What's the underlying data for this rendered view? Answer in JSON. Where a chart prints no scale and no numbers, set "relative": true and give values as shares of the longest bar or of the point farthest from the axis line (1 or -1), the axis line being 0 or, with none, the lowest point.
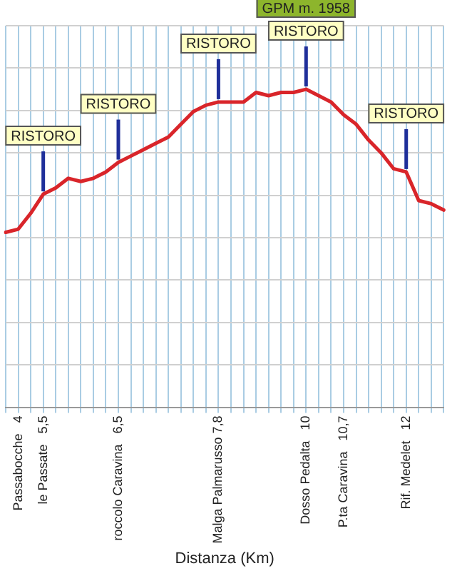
{
  "chart_data": {
    "type": "line",
    "relative": true,
    "xlabel": "Distanza (Km)",
    "categories": [
      null,
      "Passabocche   4",
      null,
      "le Passate   5,5",
      null,
      null,
      null,
      null,
      null,
      "roccolo Caravina   6,5",
      null,
      null,
      null,
      null,
      null,
      null,
      null,
      "Malga Palmarusso 7,8",
      null,
      null,
      null,
      null,
      null,
      null,
      "Dosso Pedalta   10",
      null,
      null,
      "P.ta Caravina   10,7",
      null,
      null,
      null,
      null,
      "Rif. Medelet   12",
      null,
      null,
      null
    ],
    "series": [
      {
        "color": "#d9252a",
        "values": [
          0.55,
          0.56,
          0.61,
          0.67,
          0.69,
          0.72,
          0.71,
          0.72,
          0.74,
          0.77,
          0.79,
          0.81,
          0.83,
          0.85,
          0.89,
          0.93,
          0.95,
          0.96,
          0.96,
          0.96,
          0.99,
          0.98,
          0.99,
          0.99,
          1,
          0.98,
          0.96,
          0.92,
          0.89,
          0.84,
          0.8,
          0.75,
          0.74,
          0.65,
          0.64,
          0.62
        ]
      }
    ],
    "annotations": [
      {
        "text": "RISTORO",
        "x": "le Passate   5,5",
        "y": 0.67
      },
      {
        "text": "RISTORO",
        "x": "roccolo Caravina   6,5",
        "y": 0.77
      },
      {
        "text": "RISTORO",
        "x": "Malga Palmarusso 7,8",
        "y": 0.96
      },
      {
        "text": "RISTORO",
        "x": "Dosso Pedalta   10",
        "y": 1
      },
      "GPM m. 1958",
      {
        "text": "RISTORO",
        "x": "Rif. Medelet   12",
        "y": 0.74
      }
    ],
    "grid": true,
    "legend": false,
    "marker": "none",
    "line_style": "solid"
  }
}
